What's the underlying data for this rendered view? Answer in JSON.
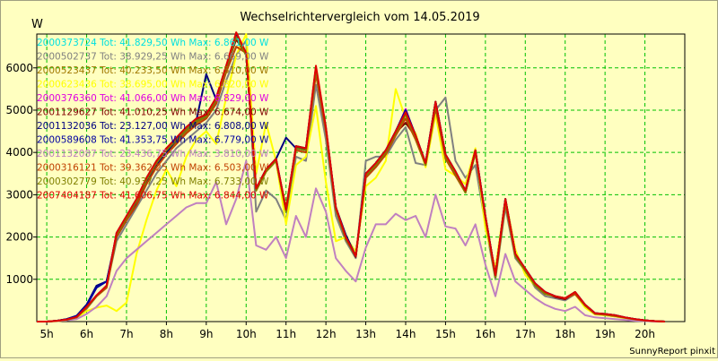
{
  "chart_data": {
    "type": "line",
    "title": "Wechselrichtervergleich vom 14.05.2019",
    "ylabel": "W",
    "xlabel": "",
    "footer": "SunnyReport pinxit",
    "ylim": [
      0,
      6800
    ],
    "y_ticks": [
      1000,
      2000,
      3000,
      4000,
      5000,
      6000
    ],
    "y_tick_labels": [
      "1000",
      "2000",
      "3000",
      "4000",
      "5000",
      "6000"
    ],
    "x_ticks": [
      5,
      6,
      7,
      8,
      9,
      10,
      11,
      12,
      13,
      14,
      15,
      16,
      17,
      18,
      19,
      20
    ],
    "x_tick_labels": [
      "5h",
      "6h",
      "7h",
      "8h",
      "9h",
      "10h",
      "11h",
      "12h",
      "13h",
      "14h",
      "15h",
      "16h",
      "17h",
      "18h",
      "19h",
      "20h"
    ],
    "xlim": [
      4.75,
      21.0
    ],
    "grid": true,
    "legend_position": "top-left",
    "x": [
      4.75,
      5.0,
      5.25,
      5.5,
      5.75,
      6.0,
      6.25,
      6.5,
      6.75,
      7.0,
      7.25,
      7.5,
      7.75,
      8.0,
      8.25,
      8.5,
      8.75,
      9.0,
      9.25,
      9.5,
      9.75,
      10.0,
      10.25,
      10.5,
      10.75,
      11.0,
      11.25,
      11.5,
      11.75,
      12.0,
      12.25,
      12.5,
      12.75,
      13.0,
      13.25,
      13.5,
      13.75,
      14.0,
      14.25,
      14.5,
      14.75,
      15.0,
      15.25,
      15.5,
      15.75,
      16.0,
      16.25,
      16.5,
      16.75,
      17.0,
      17.25,
      17.5,
      17.75,
      18.0,
      18.25,
      18.5,
      18.75,
      19.0,
      19.25,
      19.5,
      19.75,
      20.0,
      20.25,
      20.5
    ],
    "series": [
      {
        "name": "2000373724 Tot: 41.829,50 Wh Max: 6.861,00 W",
        "color": "#00e0e0",
        "values": [
          0,
          0,
          20,
          50,
          110,
          350,
          620,
          850,
          2100,
          2500,
          2900,
          3400,
          3800,
          4100,
          4350,
          4600,
          4800,
          4900,
          5300,
          6050,
          6750,
          6350,
          3150,
          3600,
          3850,
          2650,
          4150,
          4100,
          6000,
          4600,
          2700,
          2000,
          1550,
          3500,
          3750,
          4050,
          4500,
          4950,
          4400,
          3750,
          5200,
          3950,
          3550,
          3100,
          4050,
          2500,
          1100,
          2900,
          1600,
          1250,
          900,
          700,
          600,
          550,
          700,
          400,
          200,
          180,
          150,
          100,
          60,
          30,
          10,
          0
        ]
      },
      {
        "name": "2000502737 Tot: 38.929,25 Wh Max: 6.669,00 W",
        "color": "#808080",
        "values": [
          0,
          0,
          15,
          40,
          100,
          300,
          600,
          850,
          1900,
          2300,
          2700,
          3100,
          3500,
          3800,
          4100,
          4300,
          4500,
          4700,
          5000,
          5700,
          6300,
          6650,
          2600,
          3100,
          2900,
          2400,
          3900,
          3800,
          5600,
          4300,
          2500,
          1900,
          1500,
          3800,
          3900,
          3900,
          4300,
          4600,
          3750,
          3700,
          5000,
          5300,
          3800,
          3400,
          3700,
          2300,
          1000,
          2700,
          1500,
          1200,
          800,
          600,
          550,
          500,
          650,
          350,
          180,
          150,
          120,
          90,
          50,
          25,
          10,
          0
        ]
      },
      {
        "name": "2000523437 Tot: 40.233,50 Wh Max: 6.510,00 W",
        "color": "#a07800",
        "values": [
          0,
          0,
          20,
          50,
          110,
          330,
          610,
          840,
          2050,
          2450,
          2800,
          3300,
          3700,
          4000,
          4250,
          4500,
          4700,
          4850,
          5200,
          5950,
          6500,
          6400,
          3100,
          3550,
          3800,
          2700,
          4100,
          4050,
          5900,
          4550,
          2650,
          2000,
          1550,
          3450,
          3700,
          4000,
          4450,
          4850,
          4350,
          3700,
          5100,
          3900,
          3500,
          3050,
          4000,
          2450,
          1050,
          2850,
          1550,
          1200,
          850,
          650,
          600,
          550,
          700,
          380,
          190,
          170,
          140,
          95,
          55,
          28,
          10,
          0
        ]
      },
      {
        "name": "2000623436 Tot: 38.695,00 Wh Max: 6.820,00 W",
        "color": "#ffff00",
        "values": [
          0,
          0,
          10,
          30,
          80,
          250,
          330,
          380,
          250,
          450,
          1600,
          2400,
          3100,
          3600,
          3200,
          3900,
          4300,
          4500,
          4200,
          5300,
          6300,
          6800,
          3500,
          4700,
          3800,
          2300,
          3700,
          3900,
          5100,
          3300,
          1900,
          2000,
          1650,
          3200,
          3400,
          3800,
          5500,
          4800,
          4450,
          3650,
          4900,
          3600,
          3450,
          3250,
          4100,
          2200,
          1250,
          2900,
          1700,
          1100,
          850,
          650,
          600,
          550,
          650,
          330,
          170,
          150,
          120,
          80,
          45,
          20,
          10,
          0
        ]
      },
      {
        "name": "2000376360 Tot: 41.066,00 Wh Max: 6.829,00 W",
        "color": "#e000e0",
        "values": [
          0,
          0,
          20,
          50,
          110,
          340,
          620,
          850,
          2100,
          2480,
          2880,
          3380,
          3780,
          4080,
          4330,
          4580,
          4780,
          4880,
          5280,
          6030,
          6730,
          6330,
          3130,
          3580,
          3830,
          2630,
          4130,
          4080,
          5980,
          4580,
          2680,
          1990,
          1540,
          3480,
          3730,
          4030,
          4480,
          5030,
          4380,
          3730,
          5180,
          3930,
          3530,
          3080,
          4030,
          2480,
          1090,
          2880,
          1590,
          1240,
          890,
          690,
          590,
          540,
          690,
          390,
          195,
          175,
          145,
          98,
          58,
          29,
          10,
          0
        ]
      },
      {
        "name": "2001129627 Tot: 41.010,25 Wh Max: 6.674,00 W",
        "color": "#800000",
        "values": [
          0,
          0,
          20,
          50,
          110,
          340,
          610,
          850,
          2090,
          2470,
          2870,
          3370,
          3770,
          4070,
          4320,
          4570,
          4770,
          4870,
          5270,
          6020,
          6670,
          6320,
          3120,
          3570,
          3820,
          2620,
          4120,
          4070,
          5970,
          4570,
          2670,
          1980,
          1530,
          3470,
          3720,
          4020,
          4470,
          4700,
          4370,
          3720,
          5170,
          3920,
          3520,
          3070,
          4020,
          2470,
          1080,
          2870,
          1580,
          1230,
          880,
          680,
          580,
          530,
          680,
          380,
          190,
          170,
          140,
          95,
          55,
          28,
          10,
          0
        ]
      },
      {
        "name": "2001132036 Tot: 23.127,00 Wh Max: 6.808,00 W",
        "color": "#000080",
        "values": [
          0,
          0,
          20,
          60,
          140,
          400,
          850,
          950,
          2000,
          2400,
          2800,
          3300,
          3700,
          4000,
          4300,
          4550,
          4750,
          5850,
          5250,
          6000,
          6750,
          6300,
          3150,
          3600,
          3850,
          4350,
          4100,
          4050,
          6000,
          4550,
          2700,
          2050,
          1550,
          3500,
          3750,
          4050,
          4500,
          5000,
          4400,
          3750,
          5200,
          3950,
          3550,
          3100,
          4050,
          2500,
          1100,
          2900,
          1600,
          1250,
          900,
          700,
          600,
          550,
          700,
          400,
          200,
          180,
          150,
          100,
          60,
          30,
          10,
          0
        ]
      },
      {
        "name": "2000589608 Tot: 41.353,75 Wh Max: 6.779,00 W",
        "color": "#0000a0",
        "values": [
          0,
          0,
          20,
          60,
          130,
          380,
          800,
          950,
          2050,
          2450,
          2850,
          3350,
          3750,
          4050,
          4300,
          4550,
          4750,
          4850,
          5250,
          6000,
          6780,
          6300,
          3150,
          3600,
          3850,
          2650,
          4150,
          4100,
          6000,
          4550,
          2700,
          2000,
          1550,
          3500,
          3750,
          4050,
          4500,
          5000,
          4400,
          3750,
          5200,
          3950,
          3550,
          3100,
          4050,
          2500,
          1100,
          2900,
          1600,
          1250,
          900,
          700,
          600,
          550,
          700,
          400,
          200,
          180,
          150,
          100,
          60,
          30,
          10,
          0
        ]
      },
      {
        "name": "2001132087 Tot: 23.436,75 Wh Max: 3.810,00 W",
        "color": "#c080c0",
        "values": [
          0,
          0,
          10,
          30,
          60,
          180,
          350,
          600,
          1200,
          1500,
          1700,
          1900,
          2100,
          2300,
          2500,
          2700,
          2800,
          2800,
          3300,
          2300,
          2900,
          3800,
          1800,
          1700,
          2000,
          1500,
          2500,
          2000,
          3150,
          2600,
          1500,
          1200,
          950,
          1750,
          2300,
          2300,
          2550,
          2400,
          2500,
          2000,
          3000,
          2250,
          2200,
          1800,
          2300,
          1350,
          600,
          1600,
          950,
          750,
          550,
          400,
          300,
          250,
          350,
          150,
          100,
          80,
          60,
          40,
          20,
          10,
          0,
          0
        ]
      },
      {
        "name": "2000316121 Tot: 39.362,25 Wh Max: 6.503,00 W",
        "color": "#c04000",
        "values": [
          0,
          0,
          15,
          45,
          100,
          320,
          600,
          800,
          2000,
          2400,
          2750,
          3250,
          3650,
          3950,
          4200,
          4450,
          4650,
          4800,
          5150,
          5900,
          6500,
          6350,
          3100,
          3550,
          3800,
          2650,
          4050,
          4000,
          5850,
          4500,
          2650,
          1950,
          1550,
          3400,
          3650,
          3950,
          4400,
          4800,
          4300,
          3700,
          5050,
          3850,
          3450,
          3050,
          4000,
          2450,
          1050,
          2800,
          1550,
          1200,
          850,
          650,
          600,
          550,
          650,
          380,
          180,
          160,
          130,
          90,
          50,
          25,
          10,
          0
        ]
      },
      {
        "name": "2000302779 Tot: 40.937,25 Wh Max: 6.733,00 W",
        "color": "#808000",
        "values": [
          0,
          0,
          15,
          45,
          100,
          330,
          610,
          830,
          2050,
          2450,
          2850,
          3350,
          3750,
          4050,
          4300,
          4550,
          4750,
          4850,
          5250,
          6000,
          6730,
          6300,
          3100,
          3550,
          3800,
          2600,
          4100,
          4050,
          5950,
          4550,
          2650,
          1950,
          1550,
          3450,
          3700,
          4000,
          4450,
          4900,
          4350,
          3700,
          5150,
          3900,
          3500,
          3050,
          4000,
          2450,
          1050,
          2850,
          1550,
          1200,
          850,
          650,
          600,
          550,
          700,
          380,
          190,
          170,
          140,
          95,
          55,
          28,
          10,
          0
        ]
      },
      {
        "name": "2007404187 Tot: 41.606,75 Wh Max: 6.844,00 W",
        "color": "#e00000",
        "values": [
          0,
          0,
          20,
          50,
          110,
          350,
          620,
          850,
          2100,
          2500,
          2900,
          3400,
          3800,
          4100,
          4350,
          4600,
          4800,
          4900,
          5300,
          6050,
          6840,
          6350,
          3150,
          3600,
          3850,
          2650,
          4150,
          4100,
          6050,
          4600,
          2700,
          2000,
          1550,
          3500,
          3750,
          4050,
          4500,
          4950,
          4400,
          3750,
          5200,
          3950,
          3550,
          3100,
          4050,
          2500,
          1100,
          2900,
          1600,
          1250,
          900,
          700,
          600,
          550,
          700,
          400,
          200,
          180,
          150,
          100,
          60,
          30,
          10,
          0
        ]
      }
    ]
  }
}
